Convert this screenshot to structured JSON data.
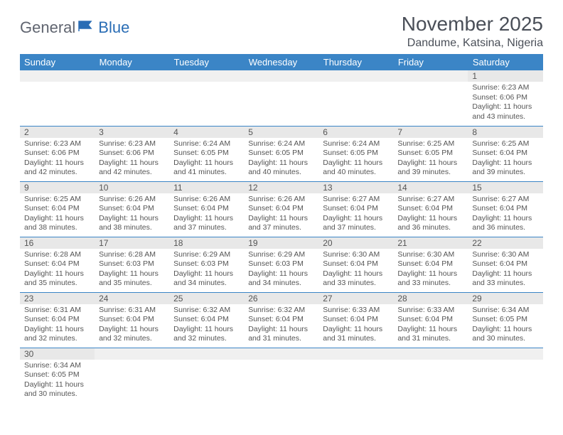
{
  "brand": {
    "word1": "General",
    "word2": "Blue"
  },
  "title": "November 2025",
  "location": "Dandume, Katsina, Nigeria",
  "colors": {
    "header_bg": "#3b85c6",
    "header_text": "#ffffff",
    "daynum_bg": "#e8e8e8",
    "border": "#3b85c6",
    "text": "#555555",
    "title_color": "#4a4f58"
  },
  "day_headers": [
    "Sunday",
    "Monday",
    "Tuesday",
    "Wednesday",
    "Thursday",
    "Friday",
    "Saturday"
  ],
  "weeks": [
    [
      null,
      null,
      null,
      null,
      null,
      null,
      {
        "n": "1",
        "sr": "6:23 AM",
        "ss": "6:06 PM",
        "dl": "11 hours and 43 minutes."
      }
    ],
    [
      {
        "n": "2",
        "sr": "6:23 AM",
        "ss": "6:06 PM",
        "dl": "11 hours and 42 minutes."
      },
      {
        "n": "3",
        "sr": "6:23 AM",
        "ss": "6:06 PM",
        "dl": "11 hours and 42 minutes."
      },
      {
        "n": "4",
        "sr": "6:24 AM",
        "ss": "6:05 PM",
        "dl": "11 hours and 41 minutes."
      },
      {
        "n": "5",
        "sr": "6:24 AM",
        "ss": "6:05 PM",
        "dl": "11 hours and 40 minutes."
      },
      {
        "n": "6",
        "sr": "6:24 AM",
        "ss": "6:05 PM",
        "dl": "11 hours and 40 minutes."
      },
      {
        "n": "7",
        "sr": "6:25 AM",
        "ss": "6:05 PM",
        "dl": "11 hours and 39 minutes."
      },
      {
        "n": "8",
        "sr": "6:25 AM",
        "ss": "6:04 PM",
        "dl": "11 hours and 39 minutes."
      }
    ],
    [
      {
        "n": "9",
        "sr": "6:25 AM",
        "ss": "6:04 PM",
        "dl": "11 hours and 38 minutes."
      },
      {
        "n": "10",
        "sr": "6:26 AM",
        "ss": "6:04 PM",
        "dl": "11 hours and 38 minutes."
      },
      {
        "n": "11",
        "sr": "6:26 AM",
        "ss": "6:04 PM",
        "dl": "11 hours and 37 minutes."
      },
      {
        "n": "12",
        "sr": "6:26 AM",
        "ss": "6:04 PM",
        "dl": "11 hours and 37 minutes."
      },
      {
        "n": "13",
        "sr": "6:27 AM",
        "ss": "6:04 PM",
        "dl": "11 hours and 37 minutes."
      },
      {
        "n": "14",
        "sr": "6:27 AM",
        "ss": "6:04 PM",
        "dl": "11 hours and 36 minutes."
      },
      {
        "n": "15",
        "sr": "6:27 AM",
        "ss": "6:04 PM",
        "dl": "11 hours and 36 minutes."
      }
    ],
    [
      {
        "n": "16",
        "sr": "6:28 AM",
        "ss": "6:04 PM",
        "dl": "11 hours and 35 minutes."
      },
      {
        "n": "17",
        "sr": "6:28 AM",
        "ss": "6:03 PM",
        "dl": "11 hours and 35 minutes."
      },
      {
        "n": "18",
        "sr": "6:29 AM",
        "ss": "6:03 PM",
        "dl": "11 hours and 34 minutes."
      },
      {
        "n": "19",
        "sr": "6:29 AM",
        "ss": "6:03 PM",
        "dl": "11 hours and 34 minutes."
      },
      {
        "n": "20",
        "sr": "6:30 AM",
        "ss": "6:04 PM",
        "dl": "11 hours and 33 minutes."
      },
      {
        "n": "21",
        "sr": "6:30 AM",
        "ss": "6:04 PM",
        "dl": "11 hours and 33 minutes."
      },
      {
        "n": "22",
        "sr": "6:30 AM",
        "ss": "6:04 PM",
        "dl": "11 hours and 33 minutes."
      }
    ],
    [
      {
        "n": "23",
        "sr": "6:31 AM",
        "ss": "6:04 PM",
        "dl": "11 hours and 32 minutes."
      },
      {
        "n": "24",
        "sr": "6:31 AM",
        "ss": "6:04 PM",
        "dl": "11 hours and 32 minutes."
      },
      {
        "n": "25",
        "sr": "6:32 AM",
        "ss": "6:04 PM",
        "dl": "11 hours and 32 minutes."
      },
      {
        "n": "26",
        "sr": "6:32 AM",
        "ss": "6:04 PM",
        "dl": "11 hours and 31 minutes."
      },
      {
        "n": "27",
        "sr": "6:33 AM",
        "ss": "6:04 PM",
        "dl": "11 hours and 31 minutes."
      },
      {
        "n": "28",
        "sr": "6:33 AM",
        "ss": "6:04 PM",
        "dl": "11 hours and 31 minutes."
      },
      {
        "n": "29",
        "sr": "6:34 AM",
        "ss": "6:05 PM",
        "dl": "11 hours and 30 minutes."
      }
    ],
    [
      {
        "n": "30",
        "sr": "6:34 AM",
        "ss": "6:05 PM",
        "dl": "11 hours and 30 minutes."
      },
      null,
      null,
      null,
      null,
      null,
      null
    ]
  ],
  "labels": {
    "sunrise": "Sunrise:",
    "sunset": "Sunset:",
    "daylight": "Daylight:"
  }
}
